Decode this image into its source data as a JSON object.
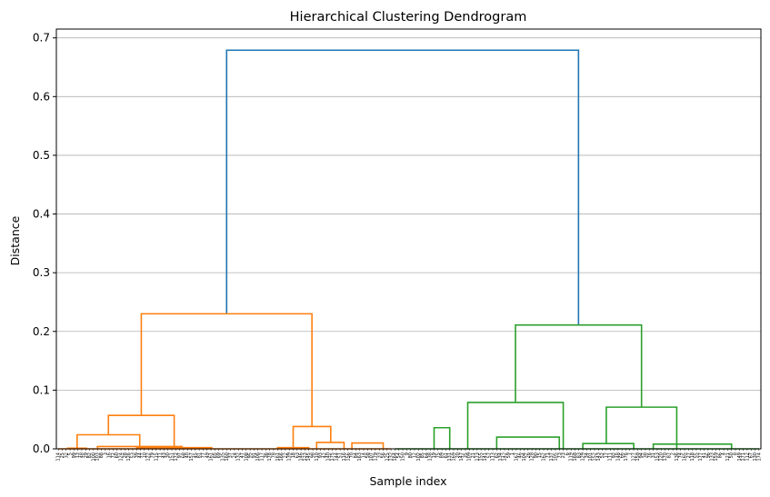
{
  "chart_data": {
    "type": "dendrogram",
    "title": "Hierarchical Clustering Dendrogram",
    "xlabel": "Sample index",
    "ylabel": "Distance",
    "ylim": [
      0,
      0.715
    ],
    "yticks": [
      0.0,
      0.1,
      0.2,
      0.3,
      0.4,
      0.5,
      0.6,
      0.7
    ],
    "ytick_labels": [
      "0.0",
      "0.1",
      "0.2",
      "0.3",
      "0.4",
      "0.5",
      "0.6",
      "0.7"
    ],
    "grid": "horizontal",
    "leaf_count": 180,
    "clusters": [
      {
        "color": "#ff7f0e",
        "leaf_range": [
          0,
          86
        ]
      },
      {
        "color": "#2ca02c",
        "leaf_range": [
          86,
          180
        ]
      }
    ],
    "root_color": "#1f77b4",
    "merges": [
      {
        "left": 43.0,
        "right": 132.9,
        "height": 0.679,
        "color": "#1f77b4"
      },
      {
        "left": 21.2,
        "right": 64.8,
        "height": 0.23,
        "color": "#ff7f0e"
      },
      {
        "left": 116.8,
        "right": 149.0,
        "height": 0.211,
        "color": "#2ca02c"
      },
      {
        "left": 12.8,
        "right": 29.6,
        "height": 0.057,
        "color": "#ff7f0e"
      },
      {
        "left": 4.8,
        "right": 20.8,
        "height": 0.024,
        "color": "#ff7f0e"
      },
      {
        "left": 2.4,
        "right": 7.2,
        "height": 0.001,
        "color": "#ff7f0e"
      },
      {
        "left": 10.0,
        "right": 31.6,
        "height": 0.004,
        "color": "#ff7f0e"
      },
      {
        "left": 20.0,
        "right": 39.2,
        "height": 0.002,
        "color": "#ff7f0e"
      },
      {
        "left": 60.0,
        "right": 69.6,
        "height": 0.038,
        "color": "#ff7f0e"
      },
      {
        "left": 56.0,
        "right": 64.0,
        "height": 0.002,
        "color": "#ff7f0e"
      },
      {
        "left": 66.0,
        "right": 73.0,
        "height": 0.011,
        "color": "#ff7f0e"
      },
      {
        "left": 75.0,
        "right": 83.0,
        "height": 0.01,
        "color": "#ff7f0e"
      },
      {
        "left": 104.6,
        "right": 129.0,
        "height": 0.079,
        "color": "#2ca02c"
      },
      {
        "left": 96.0,
        "right": 100.0,
        "height": 0.036,
        "color": "#2ca02c"
      },
      {
        "left": 112.0,
        "right": 128.0,
        "height": 0.02,
        "color": "#2ca02c"
      },
      {
        "left": 140.0,
        "right": 158.0,
        "height": 0.071,
        "color": "#2ca02c"
      },
      {
        "left": 134.0,
        "right": 147.0,
        "height": 0.009,
        "color": "#2ca02c"
      },
      {
        "left": 152.0,
        "right": 172.0,
        "height": 0.008,
        "color": "#2ca02c"
      }
    ],
    "leaf_labels": [
      "114",
      "25",
      "32",
      "5",
      "99",
      "13",
      "48",
      "29",
      "82",
      "100",
      "103",
      "88",
      "3",
      "16",
      "72",
      "60",
      "124",
      "28",
      "126",
      "53",
      "39",
      "44",
      "10",
      "122",
      "79",
      "115",
      "11",
      "43",
      "30",
      "151",
      "172",
      "97",
      "68",
      "40",
      "157",
      "45",
      "81",
      "77",
      "49",
      "161",
      "65",
      "69",
      "135",
      "160",
      "37",
      "24",
      "132",
      "47",
      "108",
      "95",
      "91",
      "106",
      "117",
      "36",
      "178",
      "78",
      "161",
      "166",
      "22",
      "139",
      "18",
      "63",
      "146",
      "123",
      "145",
      "98",
      "110",
      "93",
      "42",
      "140",
      "175",
      "144",
      "51",
      "116",
      "156",
      "70",
      "84",
      "163",
      "14",
      "58",
      "107",
      "179",
      "33",
      "56",
      "125",
      "132",
      "164",
      "54",
      "150",
      "9",
      "80",
      "12",
      "102",
      "85",
      "64",
      "138",
      "19",
      "75",
      "89",
      "61",
      "131",
      "169",
      "20",
      "147",
      "35",
      "109",
      "21",
      "173",
      "155",
      "141",
      "57",
      "113",
      "62",
      "134",
      "142",
      "59",
      "1",
      "167",
      "46",
      "104",
      "26",
      "128",
      "90",
      "15",
      "162",
      "71",
      "137",
      "105",
      "73",
      "23",
      "6",
      "119",
      "168",
      "83",
      "129",
      "34",
      "101",
      "152",
      "143",
      "52",
      "17",
      "111",
      "92",
      "148",
      "66",
      "176",
      "7",
      "127",
      "158",
      "94",
      "38",
      "76",
      "31",
      "153",
      "120",
      "170",
      "87",
      "2",
      "136",
      "74",
      "165",
      "27",
      "118",
      "55",
      "177",
      "41",
      "96",
      "133",
      "159",
      "86",
      "4",
      "121",
      "50",
      "8",
      "149",
      "171",
      "112",
      "67",
      "130",
      "174"
    ]
  }
}
